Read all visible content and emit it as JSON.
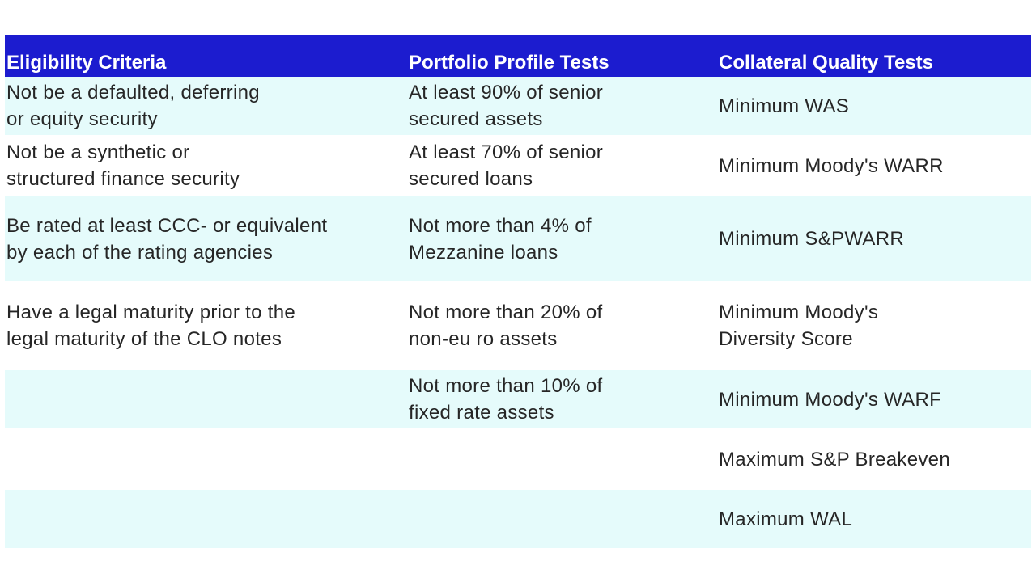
{
  "table": {
    "headers": [
      "Eligibility Criteria",
      "Portfolio Profile Tests",
      "Collateral Quality Tests"
    ],
    "rows": [
      [
        "Not be a defaulted, deferring\nor equity security",
        "At least 90% of senior\nsecured assets",
        "Minimum WAS"
      ],
      [
        "Not be a synthetic or\nstructured finance security",
        "At least 70% of senior\nsecured loans",
        "Minimum Moody's WARR"
      ],
      [
        "Be rated at least CCC- or equivalent\nby each of the rating agencies",
        "Not more than 4% of\nMezzanine loans",
        "Minimum S&PWARR"
      ],
      [
        "Have a legal maturity prior to the\nlegal maturity of the CLO notes",
        "Not more than 20% of\nnon-eu ro assets",
        "Minimum Moody's\nDiversity Score"
      ],
      [
        "",
        "Not more than 10% of\nfixed rate assets",
        "Minimum Moody's WARF"
      ],
      [
        "",
        "",
        "Maximum S&P Breakeven"
      ],
      [
        "",
        "",
        "Maximum WAL"
      ]
    ]
  },
  "colors": {
    "header_bg": "#1c1ccf",
    "header_text": "#ffffff",
    "shaded_row": "#e5fbfb",
    "text": "#262626"
  }
}
